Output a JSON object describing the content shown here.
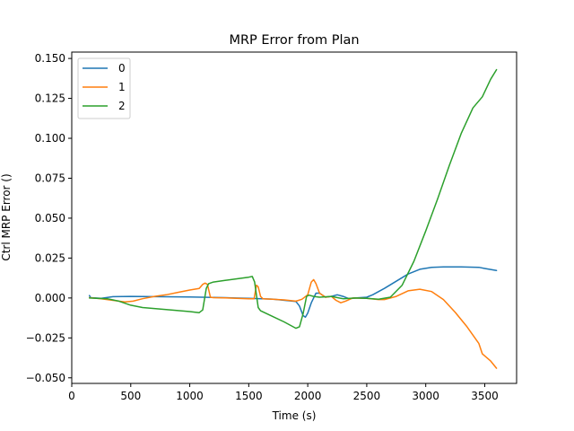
{
  "chart_data": {
    "type": "line",
    "title": "MRP Error from Plan",
    "xlabel": "Time (s)",
    "ylabel": "Ctrl MRP Error ()",
    "xlim": [
      0,
      3770
    ],
    "ylim": [
      -0.0535,
      0.154
    ],
    "xticks": [
      {
        "value": 0,
        "label": "0"
      },
      {
        "value": 500,
        "label": "500"
      },
      {
        "value": 1000,
        "label": "1000"
      },
      {
        "value": 1500,
        "label": "1500"
      },
      {
        "value": 2000,
        "label": "2000"
      },
      {
        "value": 2500,
        "label": "2500"
      },
      {
        "value": 3000,
        "label": "3000"
      },
      {
        "value": 3500,
        "label": "3500"
      }
    ],
    "yticks": [
      {
        "value": -0.05,
        "label": "−0.050"
      },
      {
        "value": -0.025,
        "label": "−0.025"
      },
      {
        "value": 0.0,
        "label": "0.000"
      },
      {
        "value": 0.025,
        "label": "0.025"
      },
      {
        "value": 0.05,
        "label": "0.050"
      },
      {
        "value": 0.075,
        "label": "0.075"
      },
      {
        "value": 0.1,
        "label": "0.100"
      },
      {
        "value": 0.125,
        "label": "0.125"
      },
      {
        "value": 0.15,
        "label": "0.150"
      }
    ],
    "legend": "top-left",
    "grid": false,
    "series": [
      {
        "name": "0",
        "color": "#1f77b4",
        "points": [
          [
            150,
            0.0015
          ],
          [
            160,
            0.0002
          ],
          [
            250,
            -0.0002
          ],
          [
            350,
            0.0008
          ],
          [
            500,
            0.001
          ],
          [
            1000,
            0.0006
          ],
          [
            1300,
            0.0002
          ],
          [
            1500,
            -0.0002
          ],
          [
            1700,
            -0.0007
          ],
          [
            1900,
            -0.0022
          ],
          [
            1930,
            -0.005
          ],
          [
            1960,
            -0.011
          ],
          [
            1980,
            -0.012
          ],
          [
            2000,
            -0.0095
          ],
          [
            2030,
            -0.003
          ],
          [
            2070,
            0.003
          ],
          [
            2100,
            0.003
          ],
          [
            2150,
            0.0005
          ],
          [
            2200,
            0.001
          ],
          [
            2250,
            0.002
          ],
          [
            2300,
            0.001
          ],
          [
            2350,
            -0.0005
          ],
          [
            2400,
            0.0
          ],
          [
            2500,
            0.0005
          ],
          [
            2550,
            0.002
          ],
          [
            2650,
            0.006
          ],
          [
            2750,
            0.0105
          ],
          [
            2850,
            0.015
          ],
          [
            2950,
            0.018
          ],
          [
            3050,
            0.0192
          ],
          [
            3150,
            0.0195
          ],
          [
            3300,
            0.0195
          ],
          [
            3450,
            0.0192
          ],
          [
            3500,
            0.0185
          ],
          [
            3600,
            0.0172
          ]
        ]
      },
      {
        "name": "1",
        "color": "#ff7f0e",
        "points": [
          [
            150,
            0.0002
          ],
          [
            250,
            -0.0005
          ],
          [
            350,
            -0.0015
          ],
          [
            450,
            -0.0025
          ],
          [
            520,
            -0.002
          ],
          [
            600,
            -0.0005
          ],
          [
            700,
            0.001
          ],
          [
            800,
            0.002
          ],
          [
            900,
            0.0035
          ],
          [
            1000,
            0.005
          ],
          [
            1080,
            0.006
          ],
          [
            1110,
            0.0085
          ],
          [
            1130,
            0.0093
          ],
          [
            1150,
            0.0085
          ],
          [
            1175,
            0.0005
          ],
          [
            1200,
            0.0002
          ],
          [
            1300,
            0.0001
          ],
          [
            1500,
            -0.0005
          ],
          [
            1545,
            -0.0005
          ],
          [
            1565,
            0.008
          ],
          [
            1580,
            0.007
          ],
          [
            1600,
            0.001
          ],
          [
            1620,
            -0.0005
          ],
          [
            1700,
            -0.0008
          ],
          [
            1800,
            -0.0012
          ],
          [
            1900,
            -0.002
          ],
          [
            1950,
            -0.0008
          ],
          [
            2000,
            0.002
          ],
          [
            2030,
            0.01
          ],
          [
            2050,
            0.0115
          ],
          [
            2070,
            0.009
          ],
          [
            2100,
            0.003
          ],
          [
            2150,
            0.0005
          ],
          [
            2200,
            0.001
          ],
          [
            2240,
            -0.0015
          ],
          [
            2280,
            -0.003
          ],
          [
            2320,
            -0.002
          ],
          [
            2380,
            0.0
          ],
          [
            2500,
            -0.0002
          ],
          [
            2600,
            -0.001
          ],
          [
            2650,
            -0.001
          ],
          [
            2750,
            0.001
          ],
          [
            2850,
            0.0045
          ],
          [
            2950,
            0.0055
          ],
          [
            3050,
            0.004
          ],
          [
            3150,
            -0.001
          ],
          [
            3250,
            -0.009
          ],
          [
            3350,
            -0.018
          ],
          [
            3450,
            -0.0285
          ],
          [
            3480,
            -0.035
          ],
          [
            3550,
            -0.0395
          ],
          [
            3600,
            -0.044
          ]
        ]
      },
      {
        "name": "2",
        "color": "#2ca02c",
        "points": [
          [
            150,
            0.0
          ],
          [
            300,
            -0.0005
          ],
          [
            400,
            -0.002
          ],
          [
            500,
            -0.0045
          ],
          [
            600,
            -0.006
          ],
          [
            800,
            -0.0072
          ],
          [
            1000,
            -0.0085
          ],
          [
            1080,
            -0.0092
          ],
          [
            1110,
            -0.0075
          ],
          [
            1140,
            0.006
          ],
          [
            1160,
            0.009
          ],
          [
            1200,
            0.01
          ],
          [
            1300,
            0.011
          ],
          [
            1400,
            0.012
          ],
          [
            1500,
            0.013
          ],
          [
            1530,
            0.0135
          ],
          [
            1550,
            0.01
          ],
          [
            1580,
            -0.006
          ],
          [
            1600,
            -0.008
          ],
          [
            1700,
            -0.0115
          ],
          [
            1800,
            -0.015
          ],
          [
            1900,
            -0.019
          ],
          [
            1930,
            -0.018
          ],
          [
            1960,
            -0.01
          ],
          [
            1990,
            0.001
          ],
          [
            2010,
            0.0018
          ],
          [
            2050,
            0.001
          ],
          [
            2100,
            0.0005
          ],
          [
            2200,
            0.001
          ],
          [
            2300,
            -0.0005
          ],
          [
            2400,
            0.0
          ],
          [
            2500,
            -0.0002
          ],
          [
            2600,
            -0.0008
          ],
          [
            2700,
            0.0005
          ],
          [
            2800,
            0.008
          ],
          [
            2900,
            0.023
          ],
          [
            3000,
            0.042
          ],
          [
            3100,
            0.062
          ],
          [
            3200,
            0.083
          ],
          [
            3300,
            0.103
          ],
          [
            3400,
            0.119
          ],
          [
            3480,
            0.126
          ],
          [
            3550,
            0.137
          ],
          [
            3600,
            0.143
          ]
        ]
      }
    ]
  }
}
